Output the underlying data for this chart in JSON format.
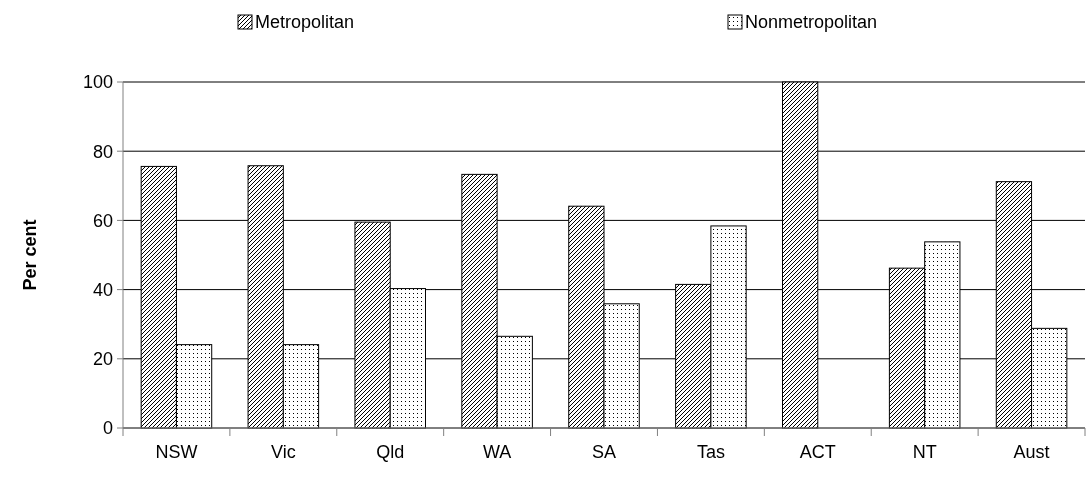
{
  "chart_data": {
    "type": "bar",
    "ylabel": "Per cent",
    "categories": [
      "NSW",
      "Vic",
      "Qld",
      "WA",
      "SA",
      "Tas",
      "ACT",
      "NT",
      "Aust"
    ],
    "series": [
      {
        "name": "Metropolitan",
        "color": "#000000",
        "values": [
          75.6,
          75.8,
          59.5,
          73.3,
          64.1,
          41.5,
          100,
          46.2,
          71.2
        ]
      },
      {
        "name": "Nonmetropolitan",
        "color": "#000000",
        "values": [
          24.1,
          24.1,
          40.3,
          26.5,
          35.9,
          58.4,
          0,
          53.8,
          28.8
        ]
      }
    ],
    "ylim": [
      0,
      100
    ],
    "yticks": [
      0,
      20,
      40,
      60,
      80,
      100
    ],
    "grid": "y",
    "legend": "top"
  }
}
